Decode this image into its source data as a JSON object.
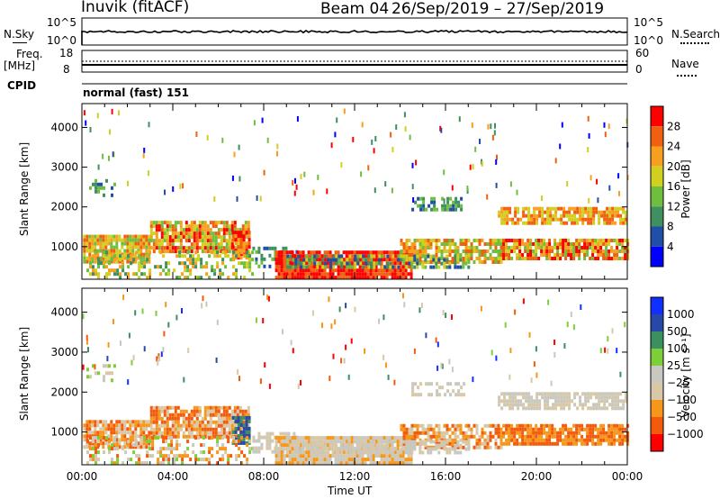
{
  "header": {
    "site": "Inuvik (fitACF)",
    "beam_label": "Beam 04",
    "date_range": "26/Sep/2019 – 27/Sep/2019"
  },
  "colors": {
    "power": [
      "#0000ff",
      "#1f4fa8",
      "#3f8f5f",
      "#6fbf3f",
      "#cfd020",
      "#f7a020",
      "#f06010",
      "#ff0000"
    ],
    "velocity": [
      "#ff0000",
      "#f45a0c",
      "#f6961a",
      "#d8c8a8",
      "#c8c8c0",
      "#7ccf38",
      "#3c8f5f",
      "#2848a8",
      "#1030ff"
    ]
  },
  "top_panels": {
    "nsky": {
      "label": "N.Sky",
      "tick_top": "10^5",
      "tick_bottom": "10^0",
      "right_tick_top": "10^5",
      "right_tick_bottom": "10^0",
      "right_label": "N.Search"
    },
    "freq": {
      "label_line1": "Freq.",
      "label_line2": "[MHz]",
      "tick_top": "18",
      "tick_bottom": "8",
      "right_tick_top": "60",
      "right_tick_bottom": "0",
      "right_label": "Nave"
    },
    "cpid": {
      "label": "CPID",
      "value": "normal (fast) 151"
    }
  },
  "chart_data": [
    {
      "type": "heatmap",
      "name": "power",
      "ylabel": "Slant Range [km]",
      "ylim": [
        180,
        4600
      ],
      "yticks": [
        "1000",
        "2000",
        "3000",
        "4000"
      ],
      "colorbar_label": "Power [dB]",
      "colorbar_ticks": [
        "4",
        "8",
        "12",
        "16",
        "20",
        "24",
        "28"
      ],
      "x_hours": [
        0,
        24
      ]
    },
    {
      "type": "heatmap",
      "name": "velocity",
      "ylabel": "Slant Range [km]",
      "ylim": [
        180,
        4600
      ],
      "yticks": [
        "1000",
        "2000",
        "3000",
        "4000"
      ],
      "colorbar_label": "Velocity [m s⁻¹]",
      "colorbar_ticks": [
        "1000",
        "500",
        "100",
        "25",
        "−25",
        "−100",
        "−500",
        "−1000"
      ],
      "xticks": [
        "00:00",
        "04:00",
        "08:00",
        "12:00",
        "16:00",
        "20:00",
        "00:00"
      ],
      "xlabel": "Time UT"
    }
  ]
}
